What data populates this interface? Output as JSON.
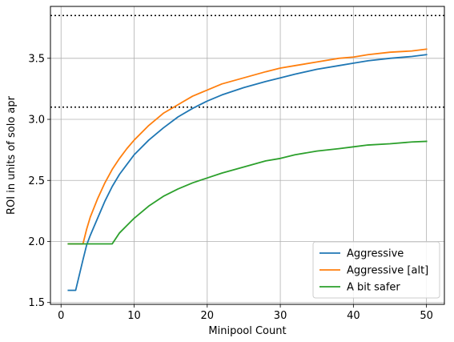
{
  "chart_data": {
    "type": "line",
    "xlabel": "Minipool Count",
    "ylabel": "ROI in units of solo apr",
    "xlim": [
      -1.45,
      52.45
    ],
    "ylim": [
      1.485,
      3.925
    ],
    "xticks": [
      0,
      10,
      20,
      30,
      40,
      50
    ],
    "yticks": [
      1.5,
      2.0,
      2.5,
      3.0,
      3.5
    ],
    "ytick_labels": [
      "1.5",
      "2.0",
      "2.5",
      "3.0",
      "3.5"
    ],
    "grid": true,
    "legend_position": "lower right",
    "reference_lines": [
      {
        "y": 3.85,
        "style": "dotted",
        "color": "#000000"
      },
      {
        "y": 3.1,
        "style": "dotted",
        "color": "#000000"
      }
    ],
    "series": [
      {
        "name": "Aggressive",
        "color": "#1f77b4",
        "x": [
          1,
          2,
          3,
          3.5,
          4,
          5,
          6,
          7,
          8,
          9,
          10,
          12,
          14,
          16,
          18,
          20,
          22,
          25,
          28,
          30,
          32,
          35,
          38,
          40,
          42,
          45,
          48,
          50
        ],
        "y": [
          1.6,
          1.6,
          1.85,
          1.97,
          2.05,
          2.19,
          2.33,
          2.45,
          2.55,
          2.63,
          2.71,
          2.83,
          2.93,
          3.02,
          3.09,
          3.15,
          3.2,
          3.26,
          3.31,
          3.34,
          3.37,
          3.41,
          3.44,
          3.46,
          3.48,
          3.5,
          3.515,
          3.53
        ]
      },
      {
        "name": "Aggressive [alt]",
        "color": "#ff7f0e",
        "x": [
          1,
          2,
          3,
          3.5,
          4,
          5,
          6,
          7,
          8,
          9,
          10,
          12,
          14,
          16,
          18,
          20,
          22,
          25,
          28,
          30,
          32,
          35,
          38,
          40,
          42,
          45,
          48,
          50
        ],
        "y": [
          1.98,
          1.98,
          1.98,
          2.1,
          2.2,
          2.35,
          2.48,
          2.59,
          2.68,
          2.76,
          2.83,
          2.95,
          3.05,
          3.12,
          3.19,
          3.24,
          3.29,
          3.34,
          3.39,
          3.42,
          3.44,
          3.47,
          3.5,
          3.51,
          3.53,
          3.55,
          3.56,
          3.575
        ]
      },
      {
        "name": "A bit safer",
        "color": "#2ca02c",
        "x": [
          1,
          2,
          3,
          4,
          5,
          6,
          7,
          8,
          9,
          10,
          12,
          14,
          16,
          18,
          20,
          22,
          25,
          28,
          30,
          32,
          35,
          38,
          40,
          42,
          45,
          48,
          50
        ],
        "y": [
          1.98,
          1.98,
          1.98,
          1.98,
          1.98,
          1.98,
          1.98,
          2.07,
          2.13,
          2.19,
          2.29,
          2.37,
          2.43,
          2.48,
          2.52,
          2.56,
          2.61,
          2.66,
          2.68,
          2.71,
          2.74,
          2.76,
          2.775,
          2.79,
          2.8,
          2.815,
          2.82
        ]
      }
    ]
  }
}
